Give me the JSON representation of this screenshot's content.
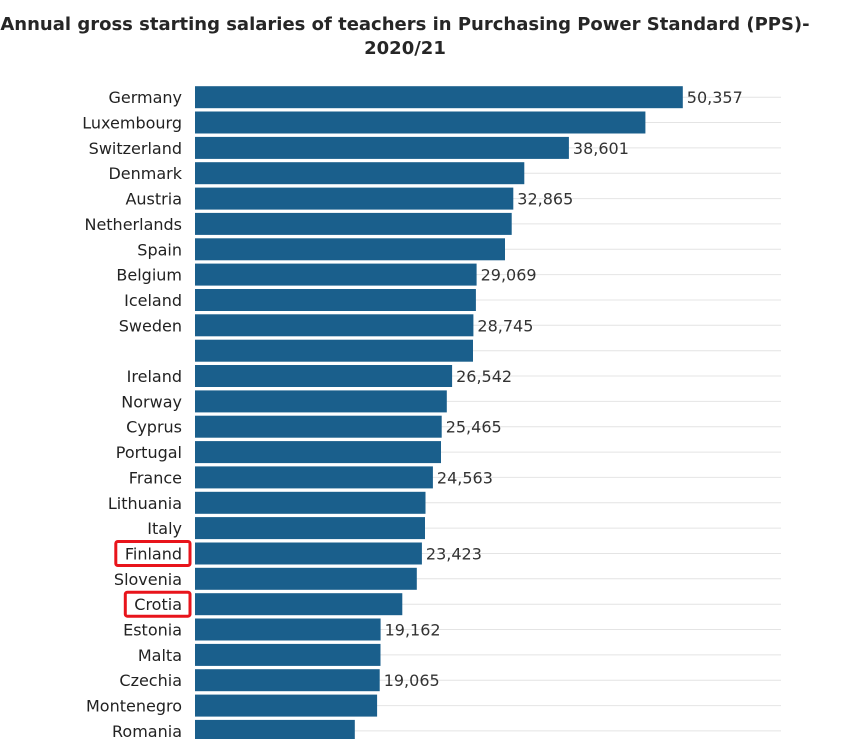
{
  "chart_data": {
    "type": "bar",
    "orientation": "horizontal",
    "title_line1": "Annual gross starting salaries of teachers in Purchasing Power Standard (PPS)-",
    "title_line2": "2020/21",
    "categories": [
      "Germany",
      "Luxembourg",
      "Switzerland",
      "Denmark",
      "Austria",
      "Netherlands",
      "Spain",
      "Belgium",
      "Iceland",
      "Sweden",
      "",
      "Ireland",
      "Norway",
      "Cyprus",
      "Portugal",
      "France",
      "Lithuania",
      "Italy",
      "Finland",
      "Slovenia",
      "Crotia",
      "Estonia",
      "Malta",
      "Czechia",
      "Montenegro",
      "Romania"
    ],
    "values": [
      50357,
      46500,
      38601,
      34000,
      32865,
      32700,
      32000,
      29069,
      29000,
      28745,
      28700,
      26542,
      26000,
      25465,
      25400,
      24563,
      23800,
      23750,
      23423,
      22900,
      21400,
      19162,
      19150,
      19065,
      18800,
      16500
    ],
    "value_labels": [
      "50,357",
      "",
      "38,601",
      "",
      "32,865",
      "",
      "",
      "29,069",
      "",
      "28,745",
      "",
      "26,542",
      "",
      "25,465",
      "",
      "24,563",
      "",
      "",
      "23,423",
      "",
      "",
      "19,162",
      "",
      "19,065",
      "",
      ""
    ],
    "highlighted": [
      "Finland",
      "Crotia"
    ],
    "xlim": [
      0,
      60500
    ],
    "grid": true,
    "bar_color": "#1a5f8c",
    "highlight_color": "#e8141b",
    "grid_color": "#e4e4e4"
  }
}
